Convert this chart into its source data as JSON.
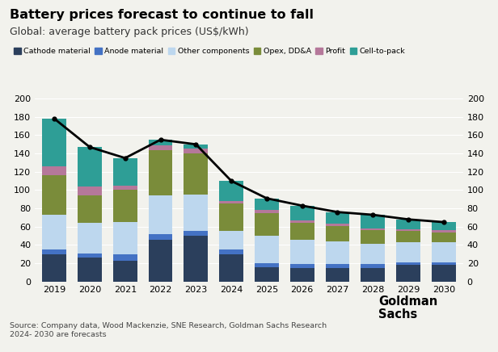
{
  "years": [
    2019,
    2020,
    2021,
    2022,
    2023,
    2024,
    2025,
    2026,
    2027,
    2028,
    2029,
    2030
  ],
  "cathode": [
    30,
    26,
    23,
    46,
    50,
    30,
    16,
    15,
    15,
    15,
    18,
    18
  ],
  "anode": [
    5,
    5,
    7,
    6,
    5,
    5,
    4,
    4,
    4,
    4,
    3,
    3
  ],
  "other_components": [
    38,
    33,
    35,
    42,
    40,
    20,
    30,
    27,
    25,
    22,
    22,
    22
  ],
  "opex": [
    43,
    30,
    35,
    50,
    45,
    30,
    25,
    18,
    17,
    15,
    12,
    11
  ],
  "profit": [
    10,
    10,
    5,
    5,
    5,
    3,
    3,
    3,
    2,
    2,
    2,
    2
  ],
  "cell_to_pack": [
    52,
    43,
    30,
    6,
    5,
    22,
    13,
    16,
    13,
    15,
    11,
    9
  ],
  "line_values": [
    178,
    147,
    135,
    155,
    150,
    110,
    91,
    83,
    76,
    73,
    68,
    65
  ],
  "colors": {
    "cathode": "#2b3f5c",
    "anode": "#4472c4",
    "other_components": "#bdd7ee",
    "opex": "#7a8c3a",
    "profit": "#b5789a",
    "cell_to_pack": "#2e9e96"
  },
  "title": "Battery prices forecast to continue to fall",
  "subtitle": "Global: average battery pack prices (US$/kWh)",
  "ylim": [
    0,
    200
  ],
  "yticks": [
    0,
    20,
    40,
    60,
    80,
    100,
    120,
    140,
    160,
    180,
    200
  ],
  "source_text": "Source: Company data, Wood Mackenzie, SNE Research, Goldman Sachs Research\n2024- 2030 are forecasts",
  "legend_labels": [
    "Cathode material",
    "Anode material",
    "Other components",
    "Opex, DD&A",
    "Profit",
    "Cell-to-pack"
  ],
  "background_color": "#f2f2ed"
}
